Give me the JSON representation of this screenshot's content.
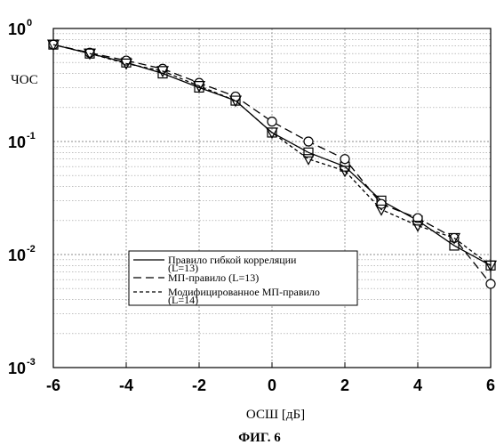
{
  "chart_data": {
    "type": "line",
    "xlabel": "ОСШ [дБ]",
    "ylabel": "ЧОС",
    "caption": "ФИГ. 6",
    "xlim": [
      -6,
      6
    ],
    "ylim": [
      0.001,
      1
    ],
    "yscale": "log",
    "x_ticks": [
      "-6",
      "-4",
      "-2",
      "0",
      "2",
      "4",
      "6"
    ],
    "y_ticks": [
      {
        "base": "10",
        "exp": "0"
      },
      {
        "base": "10",
        "exp": "-1"
      },
      {
        "base": "10",
        "exp": "-2"
      },
      {
        "base": "10",
        "exp": "-3"
      }
    ],
    "grid": true,
    "x": [
      -6,
      -5,
      -4,
      -3,
      -2,
      -1,
      0,
      1,
      2,
      3,
      4,
      5,
      6
    ],
    "series": [
      {
        "name": "Правило гибкой корреляции (L=13)",
        "color": "#000000",
        "dash": "none",
        "marker": "square",
        "values": [
          0.72,
          0.6,
          0.5,
          0.4,
          0.3,
          0.23,
          0.12,
          0.08,
          0.06,
          0.03,
          0.02,
          0.012,
          0.008
        ]
      },
      {
        "name": "МП-правило (L=13)",
        "color": "#000000",
        "dash": "9,5",
        "marker": "circle",
        "values": [
          0.72,
          0.61,
          0.52,
          0.44,
          0.33,
          0.25,
          0.15,
          0.1,
          0.07,
          0.028,
          0.021,
          0.014,
          0.0055
        ]
      },
      {
        "name": "Модифицированное МП-правило (L=14)",
        "color": "#000000",
        "dash": "4,3",
        "marker": "triangle",
        "values": [
          0.72,
          0.6,
          0.49,
          0.42,
          0.31,
          0.23,
          0.12,
          0.07,
          0.055,
          0.025,
          0.018,
          0.014,
          0.008
        ]
      }
    ]
  }
}
